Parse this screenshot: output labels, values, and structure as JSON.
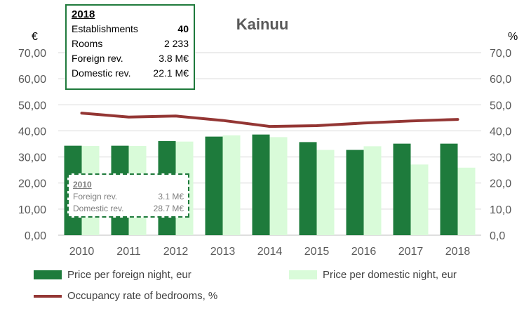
{
  "chart_data": {
    "type": "bar",
    "title": "Kainuu",
    "categories": [
      "2010",
      "2011",
      "2012",
      "2013",
      "2014",
      "2015",
      "2016",
      "2017",
      "2018"
    ],
    "series": [
      {
        "name": "Price per foreign night, eur",
        "kind": "bar",
        "axis": "left",
        "color": "#1e7b3c",
        "values": [
          34.3,
          34.3,
          36.1,
          37.8,
          38.6,
          35.7,
          32.7,
          35.1,
          35.1
        ]
      },
      {
        "name": "Price per domestic night, eur",
        "kind": "bar",
        "axis": "left",
        "color": "#d9fbd9",
        "values": [
          34.2,
          34.2,
          35.9,
          38.3,
          37.6,
          32.7,
          34.1,
          27.1,
          25.9
        ]
      },
      {
        "name": "Occupancy rate of bedrooms, %",
        "kind": "line",
        "axis": "right",
        "color": "#943634",
        "values": [
          46.8,
          45.3,
          45.7,
          44.0,
          41.7,
          42.0,
          43.0,
          43.8,
          44.4
        ]
      }
    ],
    "ylabel": "€",
    "y2label": "%",
    "ylim": [
      0,
      70
    ],
    "y2lim": [
      0,
      70
    ],
    "yticks": [
      "0,00",
      "10,00",
      "20,00",
      "30,00",
      "40,00",
      "50,00",
      "60,00",
      "70,00"
    ],
    "y2ticks": [
      "0,0",
      "10,0",
      "20,0",
      "30,0",
      "40,0",
      "50,0",
      "60,0",
      "70,0"
    ],
    "grid": true,
    "legend_placement": "bottom"
  },
  "box2018": {
    "year": "2018",
    "rows": [
      {
        "label": "Establishments",
        "value": "40"
      },
      {
        "label": "Rooms",
        "value": "2 233"
      },
      {
        "label": "Foreign rev.",
        "value": "3.8 M€"
      },
      {
        "label": "Domestic rev.",
        "value": "22.1 M€"
      }
    ]
  },
  "box2010": {
    "year": "2010",
    "rows": [
      {
        "label": "Foreign rev.",
        "value": "3.1 M€"
      },
      {
        "label": "Domestic rev.",
        "value": "28.7 M€"
      }
    ]
  }
}
